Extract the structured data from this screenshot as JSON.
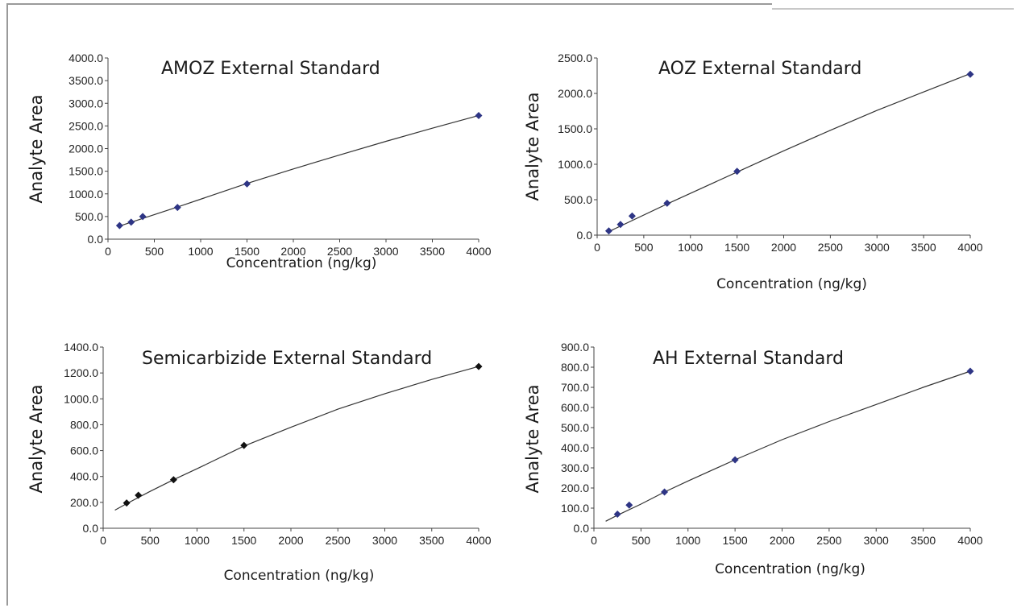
{
  "chart_data": [
    {
      "type": "scatter",
      "title": "AMOZ External Standard",
      "xlabel": "Concentration (ng/kg)",
      "ylabel": "Analyte Area",
      "xlim": [
        0,
        4000
      ],
      "ylim": [
        0,
        4000
      ],
      "xticks": [
        0,
        500,
        1000,
        1500,
        2000,
        2500,
        3000,
        3500,
        4000
      ],
      "yticks": [
        "0.0",
        "500.0",
        "1000.0",
        "1500.0",
        "2000.0",
        "2500.0",
        "3000.0",
        "3500.0",
        "4000.0"
      ],
      "marker_color": "#2e3585",
      "series": [
        {
          "x": [
            125,
            250,
            375,
            750,
            1500,
            4000
          ],
          "y": [
            300,
            375,
            500,
            700,
            1220,
            2730
          ]
        }
      ],
      "trendline": {
        "x": [
          125,
          750,
          1500,
          2000,
          2500,
          3000,
          3500,
          4000
        ],
        "y": [
          290,
          710,
          1230,
          1550,
          1860,
          2160,
          2450,
          2730
        ]
      }
    },
    {
      "type": "scatter",
      "title": "AOZ External Standard",
      "xlabel": "Concentration (ng/kg)",
      "ylabel": "Analyte Area",
      "xlim": [
        0,
        4000
      ],
      "ylim": [
        0,
        2500
      ],
      "xticks": [
        0,
        500,
        1000,
        1500,
        2000,
        2500,
        3000,
        3500,
        4000
      ],
      "yticks": [
        "0.0",
        "500.0",
        "1000.0",
        "1500.0",
        "2000.0",
        "2500.0"
      ],
      "marker_color": "#2e3585",
      "series": [
        {
          "x": [
            125,
            250,
            375,
            750,
            1500,
            4000
          ],
          "y": [
            60,
            150,
            270,
            450,
            900,
            2270
          ]
        }
      ],
      "trendline": {
        "x": [
          125,
          750,
          1500,
          2000,
          2500,
          3000,
          3500,
          4000
        ],
        "y": [
          50,
          440,
          890,
          1190,
          1480,
          1760,
          2020,
          2280
        ]
      }
    },
    {
      "type": "scatter",
      "title": "Semicarbizide External Standard",
      "xlabel": "Concentration (ng/kg)",
      "ylabel": "Analyte Area",
      "xlim": [
        0,
        4000
      ],
      "ylim": [
        0,
        1400
      ],
      "xticks": [
        0,
        500,
        1000,
        1500,
        2000,
        2500,
        3000,
        3500,
        4000
      ],
      "yticks": [
        "0.0",
        "200.0",
        "400.0",
        "600.0",
        "800.0",
        "1000.0",
        "1200.0",
        "1400.0"
      ],
      "marker_color": "#111111",
      "series": [
        {
          "x": [
            250,
            375,
            750,
            1500,
            4000
          ],
          "y": [
            195,
            255,
            375,
            640,
            1250
          ]
        }
      ],
      "trendline": {
        "x": [
          125,
          250,
          500,
          750,
          1000,
          1500,
          2000,
          2500,
          3000,
          3500,
          4000
        ],
        "y": [
          140,
          190,
          285,
          375,
          460,
          635,
          780,
          920,
          1040,
          1150,
          1250
        ]
      }
    },
    {
      "type": "scatter",
      "title": "AH External Standard",
      "xlabel": "Concentration (ng/kg)",
      "ylabel": "Analyte Area",
      "xlim": [
        0,
        4000
      ],
      "ylim": [
        0,
        900
      ],
      "xticks": [
        0,
        500,
        1000,
        1500,
        2000,
        2500,
        3000,
        3500,
        4000
      ],
      "yticks": [
        "0.0",
        "100.0",
        "200.0",
        "300.0",
        "400.0",
        "500.0",
        "600.0",
        "700.0",
        "800.0",
        "900.0"
      ],
      "marker_color": "#2e3585",
      "series": [
        {
          "x": [
            250,
            375,
            750,
            1500,
            4000
          ],
          "y": [
            70,
            115,
            180,
            340,
            780
          ]
        }
      ],
      "trendline": {
        "x": [
          125,
          250,
          500,
          750,
          1000,
          1500,
          2000,
          2500,
          3000,
          3500,
          4000
        ],
        "y": [
          35,
          65,
          120,
          180,
          235,
          340,
          440,
          530,
          615,
          700,
          780
        ]
      }
    }
  ]
}
